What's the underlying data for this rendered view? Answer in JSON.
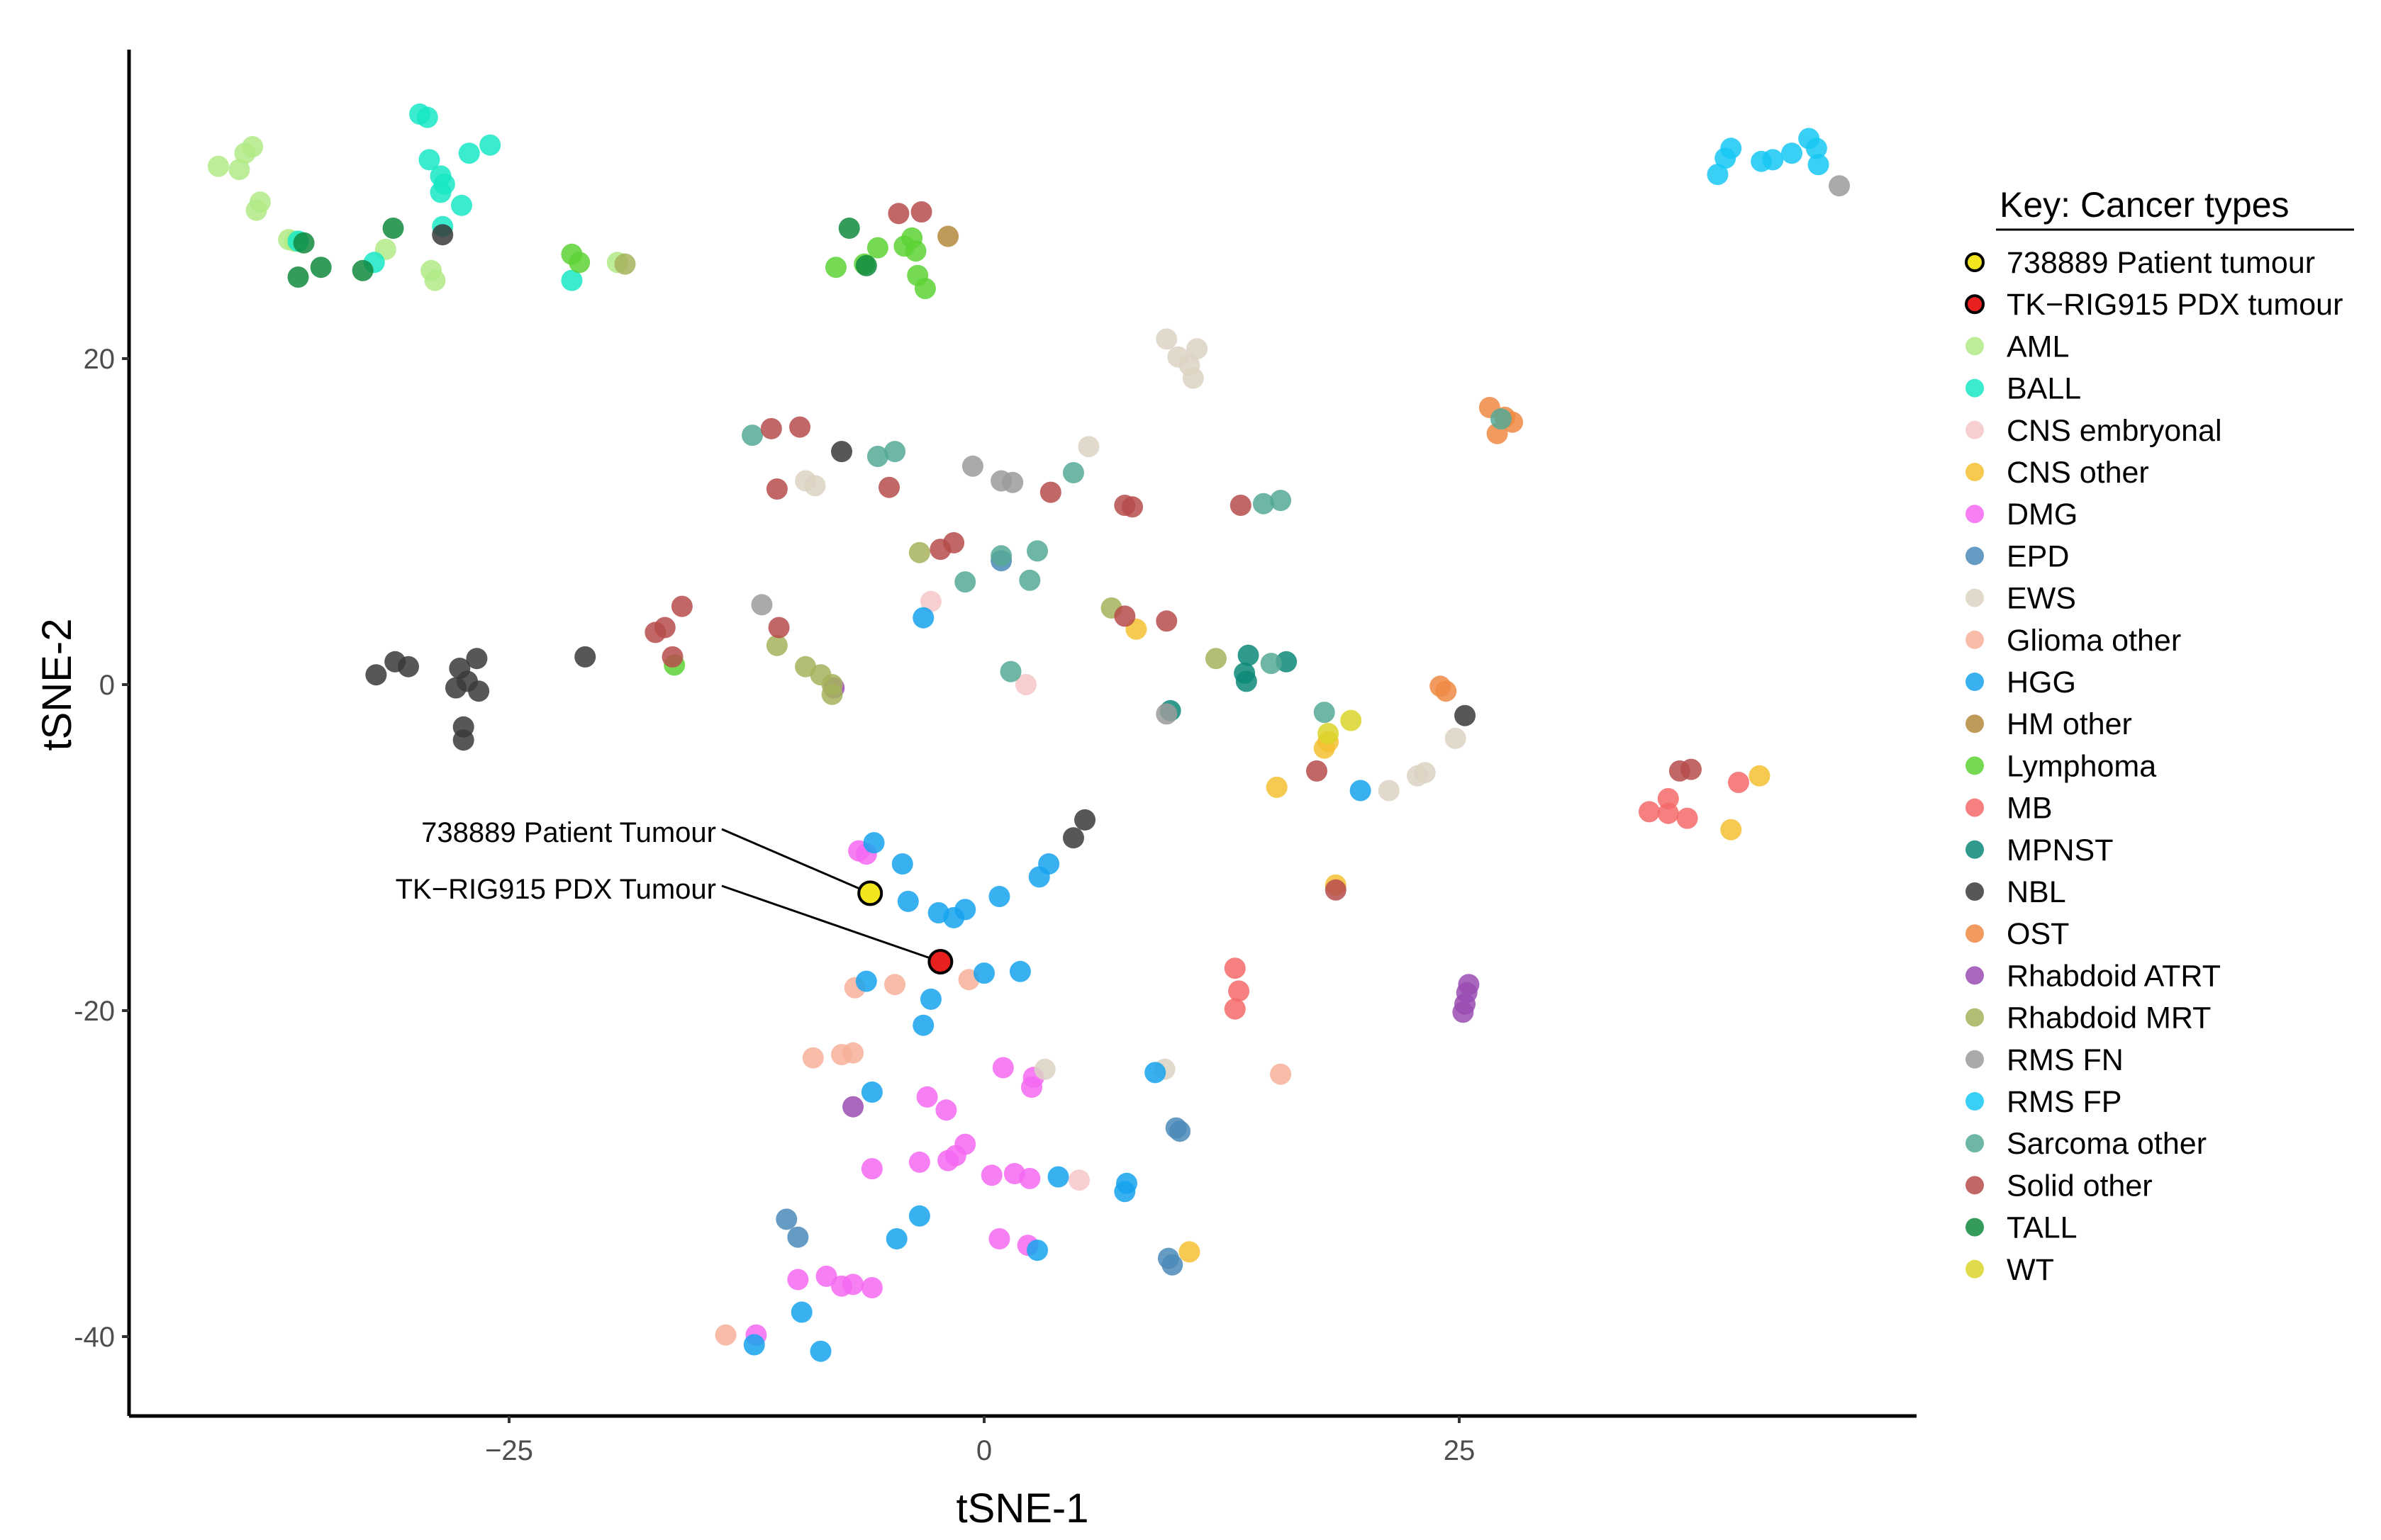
{
  "chart_data": {
    "type": "scatter",
    "xlabel": "tSNE-1",
    "ylabel": "tSNE-2",
    "xlim": [
      -45,
      49
    ],
    "ylim": [
      -45,
      38
    ],
    "xticks": [
      -25,
      0,
      25
    ],
    "yticks": [
      20,
      0,
      -20,
      -40
    ],
    "grid": false,
    "legend": {
      "title": "Key: Cancer types",
      "placement": "right"
    },
    "categories": [
      {
        "name": "738889 Patient tumour",
        "color": "#f2e51e",
        "outlined": true
      },
      {
        "name": "TK−RIG915 PDX tumour",
        "color": "#e8201e",
        "outlined": true
      },
      {
        "name": "AML",
        "color": "#b2ea86"
      },
      {
        "name": "BALL",
        "color": "#17e8c4"
      },
      {
        "name": "CNS embryonal",
        "color": "#f7c7c9"
      },
      {
        "name": "CNS other",
        "color": "#f4c032"
      },
      {
        "name": "DMG",
        "color": "#f568f2"
      },
      {
        "name": "EPD",
        "color": "#4b89b8"
      },
      {
        "name": "EWS",
        "color": "#dcd2c2"
      },
      {
        "name": "Glioma other",
        "color": "#f7b09a"
      },
      {
        "name": "HGG",
        "color": "#16a3ef"
      },
      {
        "name": "HM other",
        "color": "#b38a3b"
      },
      {
        "name": "Lymphoma",
        "color": "#5dd235"
      },
      {
        "name": "MB",
        "color": "#f56868"
      },
      {
        "name": "MPNST",
        "color": "#0c8a78"
      },
      {
        "name": "NBL",
        "color": "#3a3a3a"
      },
      {
        "name": "OST",
        "color": "#ef8a44"
      },
      {
        "name": "Rhabdoid ATRT",
        "color": "#9a4cb3"
      },
      {
        "name": "Rhabdoid MRT",
        "color": "#a6b35c"
      },
      {
        "name": "RMS FN",
        "color": "#9b9b9b"
      },
      {
        "name": "RMS FP",
        "color": "#18c8f4"
      },
      {
        "name": "Sarcoma other",
        "color": "#55a995"
      },
      {
        "name": "Solid other",
        "color": "#b64c4c"
      },
      {
        "name": "TALL",
        "color": "#118a3e"
      },
      {
        "name": "WT",
        "color": "#dbd52a"
      }
    ],
    "highlights": [
      {
        "label": "738889 Patient Tumour",
        "category": "738889 Patient tumour",
        "x": -6.0,
        "y": -12.8
      },
      {
        "label": "TK−RIG915 PDX Tumour",
        "category": "TK−RIG915 PDX tumour",
        "x": -2.3,
        "y": -17.0
      }
    ],
    "series": [
      {
        "name": "AML",
        "points": [
          [
            -40.3,
            31.8
          ],
          [
            -39.2,
            31.6
          ],
          [
            -38.9,
            32.6
          ],
          [
            -38.5,
            33.0
          ],
          [
            -38.3,
            29.1
          ],
          [
            -38.1,
            29.6
          ],
          [
            -36.6,
            27.3
          ],
          [
            -36.3,
            27.2
          ],
          [
            -31.5,
            26.7
          ],
          [
            -29.1,
            25.4
          ],
          [
            -28.9,
            24.8
          ],
          [
            -19.3,
            25.9
          ]
        ]
      },
      {
        "name": "BALL",
        "points": [
          [
            -29.7,
            35.0
          ],
          [
            -29.3,
            34.8
          ],
          [
            -29.2,
            32.2
          ],
          [
            -28.6,
            31.2
          ],
          [
            -28.6,
            30.2
          ],
          [
            -28.4,
            30.7
          ],
          [
            -28.5,
            28.1
          ],
          [
            -27.5,
            29.4
          ],
          [
            -27.1,
            32.6
          ],
          [
            -26.0,
            33.1
          ],
          [
            -32.1,
            25.9
          ],
          [
            -36.1,
            27.2
          ],
          [
            -21.7,
            24.8
          ]
        ]
      },
      {
        "name": "CNS embryonal",
        "points": [
          [
            -2.8,
            5.1
          ],
          [
            2.2,
            0.0
          ],
          [
            5.0,
            -30.4
          ]
        ]
      },
      {
        "name": "CNS other",
        "points": [
          [
            8.0,
            3.4
          ],
          [
            15.4,
            -6.3
          ],
          [
            18.1,
            -3.5
          ],
          [
            17.9,
            -3.9
          ],
          [
            18.5,
            -12.3
          ],
          [
            10.8,
            -34.8
          ],
          [
            39.3,
            -8.9
          ],
          [
            40.8,
            -5.6
          ]
        ]
      },
      {
        "name": "DMG",
        "points": [
          [
            -6.6,
            -10.2
          ],
          [
            -6.2,
            -10.4
          ],
          [
            -3.0,
            -25.3
          ],
          [
            -2.0,
            -26.1
          ],
          [
            -1.0,
            -28.2
          ],
          [
            -1.5,
            -28.9
          ],
          [
            -1.9,
            -29.2
          ],
          [
            -3.4,
            -29.3
          ],
          [
            -5.9,
            -29.7
          ],
          [
            0.4,
            -30.1
          ],
          [
            1.6,
            -30.0
          ],
          [
            2.4,
            -30.3
          ],
          [
            1.0,
            -23.5
          ],
          [
            2.5,
            -24.7
          ],
          [
            2.6,
            -24.1
          ],
          [
            0.8,
            -34.0
          ],
          [
            2.3,
            -34.4
          ],
          [
            -8.3,
            -36.3
          ],
          [
            -9.8,
            -36.5
          ],
          [
            -7.5,
            -36.9
          ],
          [
            -6.9,
            -36.8
          ],
          [
            -5.9,
            -37.0
          ],
          [
            -12.0,
            -39.9
          ]
        ]
      },
      {
        "name": "EPD",
        "points": [
          [
            -10.4,
            -32.8
          ],
          [
            -9.8,
            -33.9
          ],
          [
            0.9,
            7.6
          ],
          [
            10.1,
            -27.2
          ],
          [
            10.3,
            -27.4
          ],
          [
            9.7,
            -35.2
          ],
          [
            9.9,
            -35.6
          ]
        ]
      },
      {
        "name": "EWS",
        "points": [
          [
            9.6,
            21.2
          ],
          [
            10.2,
            20.1
          ],
          [
            10.8,
            19.6
          ],
          [
            11.2,
            20.6
          ],
          [
            11.0,
            18.8
          ],
          [
            5.5,
            14.6
          ],
          [
            -9.4,
            12.5
          ],
          [
            -8.9,
            12.2
          ],
          [
            22.8,
            -5.6
          ],
          [
            23.2,
            -5.4
          ],
          [
            24.8,
            -3.3
          ],
          [
            21.3,
            -6.5
          ],
          [
            3.2,
            -23.6
          ],
          [
            9.5,
            -23.6
          ]
        ]
      },
      {
        "name": "Glioma other",
        "points": [
          [
            -13.6,
            -39.9
          ],
          [
            -9.0,
            -22.9
          ],
          [
            -7.5,
            -22.7
          ],
          [
            -6.9,
            -22.6
          ],
          [
            -6.8,
            -18.6
          ],
          [
            -4.7,
            -18.4
          ],
          [
            -0.8,
            -18.1
          ],
          [
            15.6,
            -23.9
          ]
        ]
      },
      {
        "name": "HGG",
        "points": [
          [
            -6.2,
            -18.2
          ],
          [
            -5.8,
            -9.7
          ],
          [
            -4.3,
            -11.0
          ],
          [
            -4.0,
            -13.3
          ],
          [
            -2.4,
            -14.0
          ],
          [
            -1.6,
            -14.3
          ],
          [
            -1.0,
            -13.8
          ],
          [
            0.8,
            -13.0
          ],
          [
            2.9,
            -11.8
          ],
          [
            3.4,
            -11.0
          ],
          [
            -2.8,
            -19.3
          ],
          [
            -3.2,
            -20.9
          ],
          [
            0.0,
            -17.7
          ],
          [
            1.9,
            -17.6
          ],
          [
            -5.9,
            -25.0
          ],
          [
            -4.6,
            -34.0
          ],
          [
            -3.4,
            -32.6
          ],
          [
            -9.6,
            -38.5
          ],
          [
            -8.6,
            -40.9
          ],
          [
            -12.1,
            -40.5
          ],
          [
            3.9,
            -30.2
          ],
          [
            7.5,
            -30.6
          ],
          [
            7.4,
            -31.1
          ],
          [
            9.0,
            -23.8
          ],
          [
            19.8,
            -6.5
          ],
          [
            2.8,
            -34.7
          ],
          [
            -3.2,
            4.1
          ]
        ]
      },
      {
        "name": "HM other",
        "points": [
          [
            -1.9,
            27.5
          ]
        ]
      },
      {
        "name": "Lymphoma",
        "points": [
          [
            -21.7,
            26.4
          ],
          [
            -21.3,
            25.9
          ],
          [
            -7.8,
            25.6
          ],
          [
            -6.3,
            25.8
          ],
          [
            -5.6,
            26.8
          ],
          [
            -4.2,
            26.9
          ],
          [
            -3.8,
            27.4
          ],
          [
            -3.6,
            26.6
          ],
          [
            -3.5,
            25.1
          ],
          [
            -3.1,
            24.3
          ],
          [
            -16.3,
            1.2
          ]
        ]
      },
      {
        "name": "MB",
        "points": [
          [
            13.2,
            -17.4
          ],
          [
            13.4,
            -18.8
          ],
          [
            13.2,
            -19.9
          ],
          [
            35.0,
            -7.8
          ],
          [
            36.0,
            -7.0
          ],
          [
            36.0,
            -7.9
          ],
          [
            37.0,
            -8.2
          ],
          [
            39.7,
            -6.0
          ]
        ]
      },
      {
        "name": "MPNST",
        "points": [
          [
            9.8,
            -1.6
          ],
          [
            13.7,
            0.7
          ],
          [
            13.8,
            0.2
          ],
          [
            13.9,
            1.8
          ],
          [
            15.9,
            1.4
          ]
        ]
      },
      {
        "name": "NBL",
        "points": [
          [
            -32.0,
            0.6
          ],
          [
            -31.0,
            1.4
          ],
          [
            -30.3,
            1.1
          ],
          [
            -27.8,
            -0.2
          ],
          [
            -27.6,
            1.0
          ],
          [
            -27.2,
            0.2
          ],
          [
            -26.7,
            1.6
          ],
          [
            -26.6,
            -0.4
          ],
          [
            -27.4,
            -2.6
          ],
          [
            -27.4,
            -3.4
          ],
          [
            -21.0,
            1.7
          ],
          [
            -7.5,
            14.3
          ],
          [
            4.7,
            -9.4
          ],
          [
            5.3,
            -8.3
          ],
          [
            25.3,
            -1.9
          ],
          [
            -28.5,
            27.6
          ]
        ]
      },
      {
        "name": "OST",
        "points": [
          [
            26.6,
            17.0
          ],
          [
            27.0,
            15.4
          ],
          [
            27.4,
            16.4
          ],
          [
            27.8,
            16.1
          ],
          [
            24.0,
            -0.1
          ],
          [
            24.3,
            -0.4
          ]
        ]
      },
      {
        "name": "Rhabdoid ATRT",
        "points": [
          [
            -7.9,
            -0.2
          ],
          [
            -6.9,
            -25.9
          ],
          [
            25.5,
            -18.4
          ],
          [
            25.4,
            -18.9
          ],
          [
            25.3,
            -19.6
          ],
          [
            25.2,
            -20.1
          ]
        ]
      },
      {
        "name": "Rhabdoid MRT",
        "points": [
          [
            -18.9,
            25.8
          ],
          [
            -10.9,
            2.4
          ],
          [
            -9.4,
            1.1
          ],
          [
            -8.6,
            0.6
          ],
          [
            -8.0,
            -0.6
          ],
          [
            -3.4,
            8.1
          ],
          [
            6.7,
            4.7
          ],
          [
            12.2,
            1.6
          ],
          [
            -8.0,
            0.0
          ]
        ]
      },
      {
        "name": "RMS FN",
        "points": [
          [
            -0.6,
            13.4
          ],
          [
            0.9,
            12.5
          ],
          [
            1.5,
            12.4
          ],
          [
            -11.7,
            4.9
          ],
          [
            9.6,
            -1.8
          ],
          [
            45.0,
            30.6
          ]
        ]
      },
      {
        "name": "RMS FP",
        "points": [
          [
            38.6,
            31.3
          ],
          [
            39.0,
            32.3
          ],
          [
            39.3,
            32.9
          ],
          [
            40.9,
            32.1
          ],
          [
            41.5,
            32.2
          ],
          [
            42.5,
            32.6
          ],
          [
            43.4,
            33.5
          ],
          [
            43.8,
            32.9
          ],
          [
            43.9,
            31.9
          ]
        ]
      },
      {
        "name": "Sarcoma other",
        "points": [
          [
            -12.2,
            15.3
          ],
          [
            -5.6,
            14.0
          ],
          [
            -4.7,
            14.3
          ],
          [
            -1.0,
            6.3
          ],
          [
            0.9,
            7.9
          ],
          [
            2.4,
            6.4
          ],
          [
            2.8,
            8.2
          ],
          [
            4.7,
            13.0
          ],
          [
            14.7,
            11.1
          ],
          [
            15.6,
            11.3
          ],
          [
            15.1,
            1.3
          ],
          [
            1.4,
            0.8
          ],
          [
            17.9,
            -1.7
          ],
          [
            27.2,
            16.3
          ]
        ]
      },
      {
        "name": "Solid other",
        "points": [
          [
            -4.5,
            28.9
          ],
          [
            -3.3,
            29.0
          ],
          [
            -11.2,
            15.7
          ],
          [
            -9.7,
            15.8
          ],
          [
            -10.9,
            12.0
          ],
          [
            -5.0,
            12.1
          ],
          [
            -2.3,
            8.3
          ],
          [
            -1.6,
            8.7
          ],
          [
            3.5,
            11.8
          ],
          [
            7.4,
            11.0
          ],
          [
            7.8,
            10.9
          ],
          [
            13.5,
            11.0
          ],
          [
            -17.3,
            3.2
          ],
          [
            -16.8,
            3.5
          ],
          [
            -16.4,
            1.7
          ],
          [
            -15.9,
            4.8
          ],
          [
            -10.8,
            3.5
          ],
          [
            7.4,
            4.2
          ],
          [
            9.6,
            3.9
          ],
          [
            17.5,
            -5.3
          ],
          [
            18.5,
            -12.6
          ],
          [
            36.6,
            -5.3
          ],
          [
            37.2,
            -5.2
          ]
        ]
      },
      {
        "name": "TALL",
        "points": [
          [
            -35.8,
            27.1
          ],
          [
            -36.1,
            25.0
          ],
          [
            -34.9,
            25.6
          ],
          [
            -32.7,
            25.4
          ],
          [
            -31.1,
            28.0
          ],
          [
            -7.1,
            28.0
          ],
          [
            -6.2,
            25.7
          ]
        ]
      },
      {
        "name": "WT",
        "points": [
          [
            19.3,
            -2.2
          ],
          [
            18.1,
            -3.0
          ]
        ]
      }
    ]
  }
}
